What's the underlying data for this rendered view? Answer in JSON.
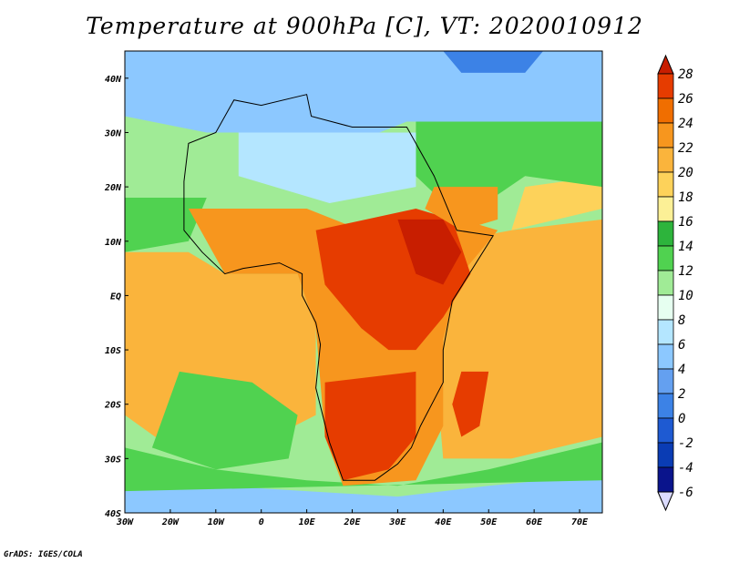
{
  "title": "Temperature at 900hPa [C], VT: 2020010912",
  "credit": "GrADS: IGES/COLA",
  "map": {
    "lon_range": [
      -30,
      75
    ],
    "lat_range": [
      -40,
      45
    ],
    "lon_ticks": [
      {
        "value": -30,
        "label": "30W"
      },
      {
        "value": -20,
        "label": "20W"
      },
      {
        "value": -10,
        "label": "10W"
      },
      {
        "value": 0,
        "label": "0"
      },
      {
        "value": 10,
        "label": "10E"
      },
      {
        "value": 20,
        "label": "20E"
      },
      {
        "value": 30,
        "label": "30E"
      },
      {
        "value": 40,
        "label": "40E"
      },
      {
        "value": 50,
        "label": "50E"
      },
      {
        "value": 60,
        "label": "60E"
      },
      {
        "value": 70,
        "label": "70E"
      }
    ],
    "lat_ticks": [
      {
        "value": 40,
        "label": "40N"
      },
      {
        "value": 30,
        "label": "30N"
      },
      {
        "value": 20,
        "label": "20N"
      },
      {
        "value": 10,
        "label": "10N"
      },
      {
        "value": 0,
        "label": "EQ"
      },
      {
        "value": -10,
        "label": "10S"
      },
      {
        "value": -20,
        "label": "20S"
      },
      {
        "value": -30,
        "label": "30S"
      },
      {
        "value": -40,
        "label": "40S"
      }
    ]
  },
  "colorbar": {
    "levels": [
      "28",
      "26",
      "24",
      "22",
      "20",
      "18",
      "16",
      "14",
      "12",
      "10",
      "8",
      "6",
      "4",
      "2",
      "0",
      "-2",
      "-4",
      "-6"
    ],
    "colors": [
      "#c81e00",
      "#e63c00",
      "#f06e00",
      "#f7961e",
      "#fab43c",
      "#fdd25a",
      "#fcf096",
      "#2db43c",
      "#50d250",
      "#a0eb96",
      "#e6fff0",
      "#b4e6ff",
      "#8cc8ff",
      "#64a0f0",
      "#3c82e6",
      "#1e5ad2",
      "#0a3cb4",
      "#0a148c",
      "#000050"
    ],
    "units": "C"
  },
  "regions": [
    {
      "name": "ocean-west-green",
      "color": "#50d250",
      "pts": [
        [
          -30,
          18
        ],
        [
          -12,
          18
        ],
        [
          -16,
          10
        ],
        [
          -30,
          8
        ]
      ]
    },
    {
      "name": "atlantic-orange",
      "color": "#fab43c",
      "pts": [
        [
          -30,
          8
        ],
        [
          -16,
          8
        ],
        [
          -8,
          4
        ],
        [
          8,
          4
        ],
        [
          12,
          -6
        ],
        [
          12,
          -22
        ],
        [
          -2,
          -28
        ],
        [
          -20,
          -28
        ],
        [
          -30,
          -22
        ]
      ]
    },
    {
      "name": "atlantic-green",
      "color": "#50d250",
      "pts": [
        [
          -18,
          -14
        ],
        [
          -2,
          -16
        ],
        [
          8,
          -22
        ],
        [
          6,
          -30
        ],
        [
          -10,
          -32
        ],
        [
          -24,
          -28
        ]
      ]
    },
    {
      "name": "south-atlantic-blue",
      "color": "#8cc8ff",
      "pts": [
        [
          -30,
          -34
        ],
        [
          10,
          -36
        ],
        [
          30,
          -37
        ],
        [
          50,
          -35
        ],
        [
          75,
          -33
        ],
        [
          75,
          -40
        ],
        [
          -30,
          -40
        ]
      ]
    },
    {
      "name": "south-green",
      "color": "#50d250",
      "pts": [
        [
          -30,
          -28
        ],
        [
          -10,
          -32
        ],
        [
          10,
          -34
        ],
        [
          30,
          -35
        ],
        [
          50,
          -32
        ],
        [
          75,
          -27
        ],
        [
          75,
          -34
        ],
        [
          -30,
          -36
        ]
      ]
    },
    {
      "name": "indian-orange",
      "color": "#fab43c",
      "pts": [
        [
          42,
          10
        ],
        [
          55,
          12
        ],
        [
          75,
          14
        ],
        [
          75,
          -26
        ],
        [
          55,
          -30
        ],
        [
          40,
          -30
        ],
        [
          38,
          -10
        ]
      ]
    },
    {
      "name": "indian-yellow",
      "color": "#fdd25a",
      "pts": [
        [
          55,
          12
        ],
        [
          75,
          16
        ],
        [
          75,
          22
        ],
        [
          58,
          20
        ]
      ]
    },
    {
      "name": "mideast-green",
      "color": "#50d250",
      "pts": [
        [
          34,
          32
        ],
        [
          75,
          32
        ],
        [
          75,
          20
        ],
        [
          58,
          22
        ],
        [
          44,
          14
        ],
        [
          34,
          22
        ]
      ]
    },
    {
      "name": "mediterranean-blue",
      "color": "#8cc8ff",
      "pts": [
        [
          -30,
          45
        ],
        [
          75,
          45
        ],
        [
          75,
          32
        ],
        [
          32,
          32
        ],
        [
          20,
          28
        ],
        [
          0,
          30
        ],
        [
          -12,
          30
        ],
        [
          -30,
          33
        ]
      ]
    },
    {
      "name": "north-dark-blue",
      "color": "#3c82e6",
      "pts": [
        [
          40,
          45
        ],
        [
          62,
          45
        ],
        [
          58,
          41
        ],
        [
          44,
          41
        ]
      ]
    },
    {
      "name": "sahara-blue",
      "color": "#b4e6ff",
      "pts": [
        [
          -5,
          30
        ],
        [
          34,
          30
        ],
        [
          34,
          20
        ],
        [
          15,
          17
        ],
        [
          -5,
          22
        ]
      ]
    },
    {
      "name": "sahel-orange",
      "color": "#f7961e",
      "pts": [
        [
          -16,
          16
        ],
        [
          10,
          16
        ],
        [
          22,
          12
        ],
        [
          30,
          12
        ],
        [
          44,
          14
        ],
        [
          52,
          12
        ],
        [
          44,
          4
        ],
        [
          40,
          -8
        ],
        [
          40,
          -24
        ],
        [
          34,
          -34
        ],
        [
          18,
          -35
        ],
        [
          14,
          -26
        ],
        [
          12,
          -6
        ],
        [
          8,
          4
        ],
        [
          -8,
          4
        ]
      ]
    },
    {
      "name": "central-red",
      "color": "#e63c00",
      "pts": [
        [
          12,
          12
        ],
        [
          34,
          16
        ],
        [
          42,
          14
        ],
        [
          46,
          4
        ],
        [
          40,
          -4
        ],
        [
          34,
          -10
        ],
        [
          28,
          -10
        ],
        [
          22,
          -6
        ],
        [
          14,
          2
        ]
      ]
    },
    {
      "name": "south-red",
      "color": "#e63c00",
      "pts": [
        [
          14,
          -16
        ],
        [
          34,
          -14
        ],
        [
          34,
          -26
        ],
        [
          28,
          -32
        ],
        [
          18,
          -34
        ],
        [
          14,
          -26
        ]
      ]
    },
    {
      "name": "horn-red",
      "color": "#c81e00",
      "pts": [
        [
          30,
          14
        ],
        [
          40,
          14
        ],
        [
          44,
          8
        ],
        [
          40,
          2
        ],
        [
          34,
          4
        ]
      ]
    },
    {
      "name": "arabia-orange",
      "color": "#f7961e",
      "pts": [
        [
          38,
          20
        ],
        [
          52,
          20
        ],
        [
          52,
          14
        ],
        [
          44,
          12
        ],
        [
          36,
          16
        ]
      ]
    },
    {
      "name": "madagascar-red",
      "color": "#e63c00",
      "pts": [
        [
          44,
          -14
        ],
        [
          50,
          -14
        ],
        [
          48,
          -24
        ],
        [
          44,
          -26
        ],
        [
          42,
          -20
        ]
      ]
    }
  ],
  "outline": [
    [
      -17,
      21
    ],
    [
      -16,
      28
    ],
    [
      -10,
      30
    ],
    [
      -6,
      36
    ],
    [
      0,
      35
    ],
    [
      10,
      37
    ],
    [
      11,
      33
    ],
    [
      20,
      31
    ],
    [
      28,
      31
    ],
    [
      32,
      31
    ],
    [
      34,
      28
    ],
    [
      38,
      22
    ],
    [
      43,
      12
    ],
    [
      51,
      11
    ],
    [
      42,
      -1
    ],
    [
      40,
      -10
    ],
    [
      40,
      -16
    ],
    [
      35,
      -24
    ],
    [
      33,
      -28
    ],
    [
      30,
      -31
    ],
    [
      25,
      -34
    ],
    [
      18,
      -34
    ],
    [
      15,
      -27
    ],
    [
      12,
      -17
    ],
    [
      13,
      -9
    ],
    [
      12,
      -5
    ],
    [
      9,
      0
    ],
    [
      9,
      4
    ],
    [
      4,
      6
    ],
    [
      -4,
      5
    ],
    [
      -8,
      4
    ],
    [
      -13,
      8
    ],
    [
      -17,
      12
    ],
    [
      -17,
      21
    ]
  ]
}
